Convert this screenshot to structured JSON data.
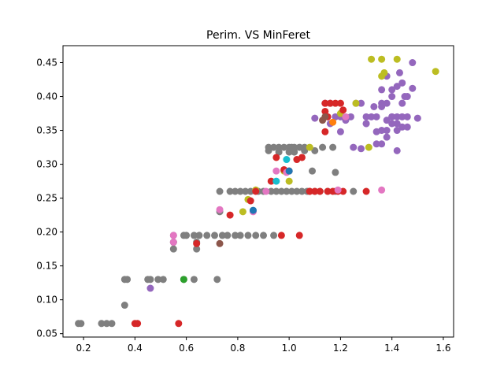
{
  "chart_data": {
    "type": "scatter",
    "title": "Perim. VS MinFeret",
    "xlabel": "",
    "ylabel": "",
    "xlim": [
      0.12,
      1.64
    ],
    "ylim": [
      0.045,
      0.475
    ],
    "xticks": [
      0.2,
      0.4,
      0.6,
      0.8,
      1.0,
      1.2,
      1.4,
      1.6
    ],
    "xtick_labels": [
      "0.2",
      "0.4",
      "0.6",
      "0.8",
      "1.0",
      "1.2",
      "1.4",
      "1.6"
    ],
    "yticks": [
      0.05,
      0.1,
      0.15,
      0.2,
      0.25,
      0.3,
      0.35,
      0.4,
      0.45
    ],
    "ytick_labels": [
      "0.05",
      "0.10",
      "0.15",
      "0.20",
      "0.25",
      "0.30",
      "0.35",
      "0.40",
      "0.45"
    ],
    "grid": false,
    "colors": {
      "gray": "#7f7f7f",
      "purple": "#9467bd",
      "olive": "#bcbd22",
      "red": "#d62728",
      "pink": "#e377c2",
      "cyan": "#17becf",
      "brown": "#8c564b",
      "green": "#2ca02c",
      "orange": "#ff7f0e",
      "blue": "#1f77b4"
    },
    "series": [
      {
        "color": "#7f7f7f",
        "x": [
          0.18,
          0.19,
          0.27,
          0.29,
          0.31,
          0.36,
          0.37,
          0.36,
          0.45,
          0.46,
          0.49,
          0.51,
          0.55,
          0.55,
          0.55,
          0.55,
          0.59,
          0.6,
          0.63,
          0.65,
          0.68,
          0.71,
          0.74,
          0.76,
          0.79,
          0.81,
          0.84,
          0.87,
          0.9,
          0.94,
          0.59,
          0.63,
          0.64,
          0.64,
          0.72,
          0.73,
          0.73,
          0.77,
          0.79,
          0.81,
          0.83,
          0.85,
          0.88,
          0.9,
          0.93,
          0.95,
          0.97,
          0.99,
          1.01,
          1.03,
          1.05,
          1.07,
          1.1,
          1.12,
          1.15,
          1.18,
          1.25,
          0.92,
          0.94,
          0.96,
          0.98,
          1.0,
          1.01,
          1.02,
          1.04,
          1.06,
          0.92,
          0.96,
          1.0,
          1.02,
          1.06,
          1.09,
          1.18,
          1.1,
          1.13,
          1.17
        ],
        "y": [
          0.065,
          0.065,
          0.065,
          0.065,
          0.065,
          0.13,
          0.13,
          0.092,
          0.13,
          0.13,
          0.13,
          0.13,
          0.195,
          0.185,
          0.175,
          0.185,
          0.195,
          0.195,
          0.195,
          0.195,
          0.195,
          0.195,
          0.195,
          0.195,
          0.195,
          0.195,
          0.195,
          0.195,
          0.195,
          0.195,
          0.13,
          0.13,
          0.185,
          0.175,
          0.13,
          0.23,
          0.26,
          0.26,
          0.26,
          0.26,
          0.26,
          0.26,
          0.26,
          0.26,
          0.26,
          0.26,
          0.26,
          0.26,
          0.26,
          0.26,
          0.26,
          0.26,
          0.26,
          0.26,
          0.26,
          0.26,
          0.26,
          0.325,
          0.325,
          0.325,
          0.325,
          0.325,
          0.325,
          0.325,
          0.325,
          0.325,
          0.32,
          0.318,
          0.318,
          0.318,
          0.32,
          0.29,
          0.288,
          0.32,
          0.325,
          0.325
        ]
      },
      {
        "color": "#9467bd",
        "x": [
          0.46,
          1.1,
          1.14,
          1.16,
          1.18,
          1.2,
          1.22,
          1.24,
          1.26,
          1.28,
          1.3,
          1.32,
          1.34,
          1.36,
          1.38,
          1.4,
          1.42,
          1.44,
          1.46,
          1.36,
          1.38,
          1.4,
          1.42,
          1.44,
          1.46,
          1.48,
          1.5,
          1.4,
          1.42,
          1.44,
          1.45,
          1.36,
          1.4,
          1.43,
          1.46,
          1.3,
          1.34,
          1.38,
          1.36,
          1.42,
          1.25,
          1.28,
          1.3,
          1.34,
          1.2,
          1.16,
          1.44,
          1.48,
          1.38,
          1.42,
          1.38,
          1.4,
          1.36,
          1.33
        ],
        "y": [
          0.117,
          0.368,
          0.39,
          0.39,
          0.37,
          0.37,
          0.365,
          0.37,
          0.39,
          0.39,
          0.37,
          0.37,
          0.37,
          0.39,
          0.39,
          0.37,
          0.37,
          0.37,
          0.37,
          0.35,
          0.35,
          0.36,
          0.36,
          0.355,
          0.355,
          0.45,
          0.368,
          0.41,
          0.415,
          0.42,
          0.4,
          0.41,
          0.4,
          0.435,
          0.4,
          0.36,
          0.348,
          0.34,
          0.33,
          0.32,
          0.325,
          0.323,
          0.36,
          0.33,
          0.348,
          0.36,
          0.39,
          0.412,
          0.43,
          0.35,
          0.365,
          0.37,
          0.385,
          0.385
        ]
      },
      {
        "color": "#bcbd22",
        "x": [
          0.82,
          0.84,
          0.87,
          0.98,
          1.0,
          1.08,
          1.31,
          1.32,
          1.36,
          1.36,
          1.42,
          1.57,
          1.37,
          1.2,
          1.26
        ],
        "y": [
          0.23,
          0.248,
          0.262,
          0.29,
          0.275,
          0.325,
          0.325,
          0.455,
          0.455,
          0.43,
          0.455,
          0.437,
          0.435,
          0.375,
          0.39
        ]
      },
      {
        "color": "#d62728",
        "x": [
          0.4,
          0.41,
          0.57,
          0.64,
          0.77,
          0.85,
          0.87,
          0.93,
          0.95,
          0.97,
          0.98,
          1.0,
          1.03,
          1.04,
          1.05,
          1.08,
          1.08,
          1.1,
          1.12,
          1.15,
          1.17,
          1.19,
          1.21,
          1.14,
          1.14,
          1.14,
          1.16,
          1.18,
          1.2,
          1.21,
          1.15,
          1.3
        ],
        "y": [
          0.065,
          0.065,
          0.065,
          0.183,
          0.225,
          0.246,
          0.26,
          0.275,
          0.31,
          0.195,
          0.292,
          0.29,
          0.307,
          0.195,
          0.31,
          0.26,
          0.26,
          0.26,
          0.26,
          0.26,
          0.26,
          0.26,
          0.26,
          0.348,
          0.378,
          0.39,
          0.39,
          0.39,
          0.39,
          0.38,
          0.37,
          0.26
        ]
      },
      {
        "color": "#e377c2",
        "x": [
          0.55,
          0.55,
          0.73,
          0.86,
          0.91,
          0.95,
          0.99,
          1.19,
          1.22,
          1.36
        ],
        "y": [
          0.195,
          0.185,
          0.233,
          0.23,
          0.26,
          0.29,
          0.288,
          0.262,
          0.37,
          0.262
        ]
      },
      {
        "color": "#17becf",
        "x": [
          0.95,
          0.99
        ],
        "y": [
          0.275,
          0.307
        ]
      },
      {
        "color": "#8c564b",
        "x": [
          0.73,
          1.13,
          1.14
        ],
        "y": [
          0.183,
          0.365,
          0.37
        ]
      },
      {
        "color": "#2ca02c",
        "x": [
          0.59
        ],
        "y": [
          0.13
        ]
      },
      {
        "color": "#ff7f0e",
        "x": [
          1.17
        ],
        "y": [
          0.362
        ]
      },
      {
        "color": "#1f77b4",
        "x": [
          1.0,
          0.86
        ],
        "y": [
          0.29,
          0.232
        ]
      }
    ]
  }
}
